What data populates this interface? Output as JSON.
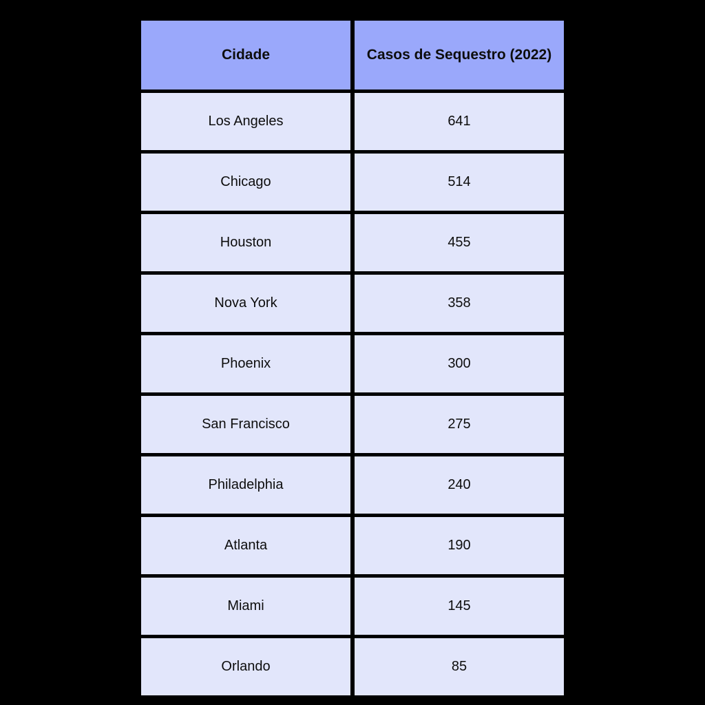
{
  "page": {
    "background_color": "#000000"
  },
  "table": {
    "name": "casos-de-sequestro-2022",
    "columns": [
      {
        "key": "city",
        "label": "Cidade"
      },
      {
        "key": "cases",
        "label": "Casos de Sequestro (2022)"
      }
    ],
    "rows": [
      {
        "city": "Los Angeles",
        "cases": "641"
      },
      {
        "city": "Chicago",
        "cases": "514"
      },
      {
        "city": "Houston",
        "cases": "455"
      },
      {
        "city": "Nova York",
        "cases": "358"
      },
      {
        "city": "Phoenix",
        "cases": "300"
      },
      {
        "city": "San Francisco",
        "cases": "275"
      },
      {
        "city": "Philadelphia",
        "cases": "240"
      },
      {
        "city": "Atlanta",
        "cases": "190"
      },
      {
        "city": "Miami",
        "cases": "145"
      },
      {
        "city": "Orlando",
        "cases": "85"
      }
    ],
    "colors": {
      "header_bg": "#9AA8FB",
      "row_bg": "#E2E6FB",
      "border": "#000000",
      "text": "#0d0d0d"
    }
  },
  "chart_data": {
    "type": "table",
    "title": "Casos de Sequestro (2022)",
    "columns": [
      "Cidade",
      "Casos de Sequestro (2022)"
    ],
    "categories": [
      "Los Angeles",
      "Chicago",
      "Houston",
      "Nova York",
      "Phoenix",
      "San Francisco",
      "Philadelphia",
      "Atlanta",
      "Miami",
      "Orlando"
    ],
    "values": [
      641,
      514,
      455,
      358,
      300,
      275,
      240,
      190,
      145,
      85
    ]
  }
}
